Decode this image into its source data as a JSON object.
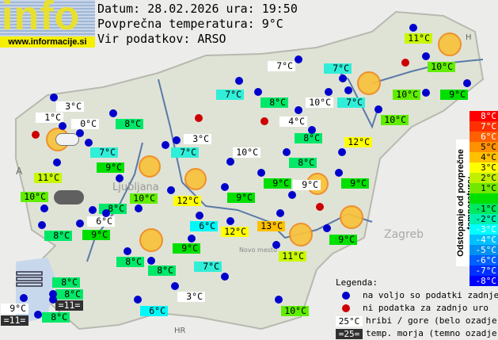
{
  "logo": {
    "text": "info",
    "url": "www.informacije.si"
  },
  "header": {
    "date_line": "Datum: 28.02.2026 ura: 19:50",
    "avg_line": "Povprečna temperatura: 9°C",
    "source_line": "Vir podatkov: ARSO"
  },
  "map_labels": [
    "A",
    "H",
    "HR",
    "Ljubljana",
    "Novo mesto",
    "Zagreb"
  ],
  "colors": {
    "w": "#ffffff",
    "d": "#303030",
    "c6": "#00f8f8",
    "c7": "#30eed8",
    "c8": "#00e868",
    "c9": "#00e000",
    "c10": "#60ee00",
    "c11": "#c8f800",
    "c12": "#ffff00",
    "c13": "#ffc000"
  },
  "stations": [
    {
      "t": "3°C",
      "s": "w"
    },
    {
      "t": "1°C",
      "s": "w"
    },
    {
      "t": "0°C",
      "s": "w"
    },
    {
      "t": "8°C",
      "s": "c8"
    },
    {
      "t": "7°C",
      "s": "c7"
    },
    {
      "t": "9°C",
      "s": "c9"
    },
    {
      "t": "11°C",
      "s": "c11"
    },
    {
      "t": "10°C",
      "s": "c10"
    },
    {
      "t": "8°C",
      "s": "c8"
    },
    {
      "t": "10°C",
      "s": "c10"
    },
    {
      "t": "6°C",
      "s": "w"
    },
    {
      "t": "8°C",
      "s": "c8"
    },
    {
      "t": "9°C",
      "s": "c9"
    },
    {
      "t": "8°C",
      "s": "c8"
    },
    {
      "t": "8°C",
      "s": "c8"
    },
    {
      "t": "6°C",
      "s": "c6"
    },
    {
      "t": "9°C",
      "s": "c9"
    },
    {
      "t": "7°C",
      "s": "c7"
    },
    {
      "t": "3°C",
      "s": "w"
    },
    {
      "t": "6°C",
      "s": "c6"
    },
    {
      "t": "8°C",
      "s": "c8"
    },
    {
      "t": "8°C",
      "s": "c8"
    },
    {
      "t": "=11=",
      "s": "d"
    },
    {
      "t": "9°C",
      "s": "w"
    },
    {
      "t": "=11=",
      "s": "d"
    },
    {
      "t": "8°C",
      "s": "c8"
    },
    {
      "t": "7°C",
      "s": "w"
    },
    {
      "t": "7°C",
      "s": "c7"
    },
    {
      "t": "7°C",
      "s": "c7"
    },
    {
      "t": "8°C",
      "s": "c8"
    },
    {
      "t": "10°C",
      "s": "w"
    },
    {
      "t": "7°C",
      "s": "c7"
    },
    {
      "t": "4°C",
      "s": "w"
    },
    {
      "t": "3°C",
      "s": "w"
    },
    {
      "t": "7°C",
      "s": "c7"
    },
    {
      "t": "8°C",
      "s": "c8"
    },
    {
      "t": "12°C",
      "s": "c12"
    },
    {
      "t": "10°C",
      "s": "w"
    },
    {
      "t": "8°C",
      "s": "c8"
    },
    {
      "t": "9°C",
      "s": "c9"
    },
    {
      "t": "9°C",
      "s": "w"
    },
    {
      "t": "9°C",
      "s": "c9"
    },
    {
      "t": "9°C",
      "s": "c9"
    },
    {
      "t": "12°C",
      "s": "c12"
    },
    {
      "t": "12°C",
      "s": "c12"
    },
    {
      "t": "13°C",
      "s": "c13"
    },
    {
      "t": "9°C",
      "s": "c9"
    },
    {
      "t": "11°C",
      "s": "c11"
    },
    {
      "t": "10°C",
      "s": "c10"
    },
    {
      "t": "11°C",
      "s": "c11"
    },
    {
      "t": "10°C",
      "s": "c10"
    },
    {
      "t": "9°C",
      "s": "c9"
    },
    {
      "t": "10°C",
      "s": "c10"
    },
    {
      "t": "10°C",
      "s": "c10"
    }
  ],
  "colorbar": {
    "title": "Odstopanje od povprečne temperature:",
    "steps": [
      {
        "t": "8°C",
        "c": "#ff0000"
      },
      {
        "t": "7°C",
        "c": "#ff3000"
      },
      {
        "t": "6°C",
        "c": "#ff6000"
      },
      {
        "t": "5°C",
        "c": "#ff9000"
      },
      {
        "t": "4°C",
        "c": "#ffc000"
      },
      {
        "t": "3°C",
        "c": "#ffff00"
      },
      {
        "t": "2°C",
        "c": "#c0f000"
      },
      {
        "t": "1°C",
        "c": "#70e800"
      },
      {
        "t": "",
        "c": "#00e000"
      },
      {
        "t": "-1°C",
        "c": "#00e860"
      },
      {
        "t": "-2°C",
        "c": "#00f0b0"
      },
      {
        "t": "-3°C",
        "c": "#00ffff"
      },
      {
        "t": "-4°C",
        "c": "#00c0ff"
      },
      {
        "t": "-5°C",
        "c": "#0090f0"
      },
      {
        "t": "-6°C",
        "c": "#0060ff"
      },
      {
        "t": "-7°C",
        "c": "#0030ff"
      },
      {
        "t": "-8°C",
        "c": "#0000ff"
      }
    ]
  },
  "legend": {
    "title": "Legenda:",
    "blue": "na voljo so podatki zadnje ure",
    "red": "ni podatka za zadnjo uro",
    "mountain_sample": "25°C",
    "mountain": "hribi / gore (belo ozadje)",
    "sea_sample": "=25=",
    "sea": "temp. morja (temno ozadje)"
  }
}
